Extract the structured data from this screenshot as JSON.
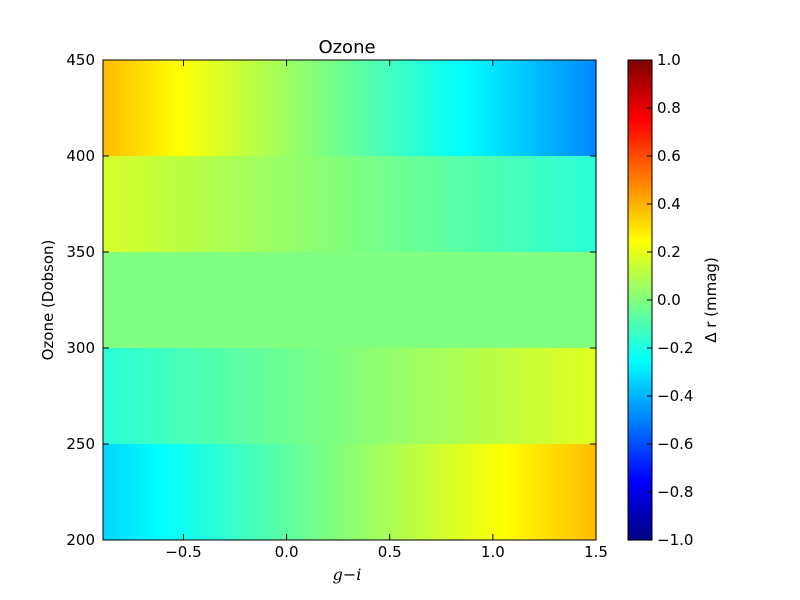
{
  "chart_data": {
    "type": "heatmap",
    "title": "Ozone",
    "xlabel": "g−i",
    "ylabel": "Ozone (Dobson)",
    "xlim": [
      -0.89,
      1.5
    ],
    "ylim": [
      200,
      450
    ],
    "x_ticks": [
      -0.5,
      0.0,
      0.5,
      1.0,
      1.5
    ],
    "x_tick_labels": [
      "−0.5",
      "0.0",
      "0.5",
      "1.0",
      "1.5"
    ],
    "y_ticks": [
      200,
      250,
      300,
      350,
      400,
      450
    ],
    "y_tick_labels": [
      "200",
      "250",
      "300",
      "350",
      "400",
      "450"
    ],
    "colormap": "jet",
    "colorbar": {
      "label": "Δ r (mmag)",
      "range": [
        -1.0,
        1.0
      ],
      "ticks": [
        -1.0,
        -0.8,
        -0.6,
        -0.4,
        -0.2,
        0.0,
        0.2,
        0.4,
        0.6,
        0.8,
        1.0
      ],
      "tick_labels": [
        "−1.0",
        "−0.8",
        "−0.6",
        "−0.4",
        "−0.2",
        "0.0",
        "0.2",
        "0.4",
        "0.6",
        "0.8",
        "1.0"
      ]
    },
    "bands": [
      {
        "y": [
          200,
          250
        ],
        "value_at_x_min": -0.33,
        "value_at_x_max": 0.38
      },
      {
        "y": [
          250,
          300
        ],
        "value_at_x_min": -0.17,
        "value_at_x_max": 0.19
      },
      {
        "y": [
          300,
          350
        ],
        "value_at_x_min": 0.0,
        "value_at_x_max": 0.0
      },
      {
        "y": [
          350,
          400
        ],
        "value_at_x_min": 0.17,
        "value_at_x_max": -0.17
      },
      {
        "y": [
          400,
          450
        ],
        "value_at_x_min": 0.38,
        "value_at_x_max": -0.48
      }
    ]
  }
}
